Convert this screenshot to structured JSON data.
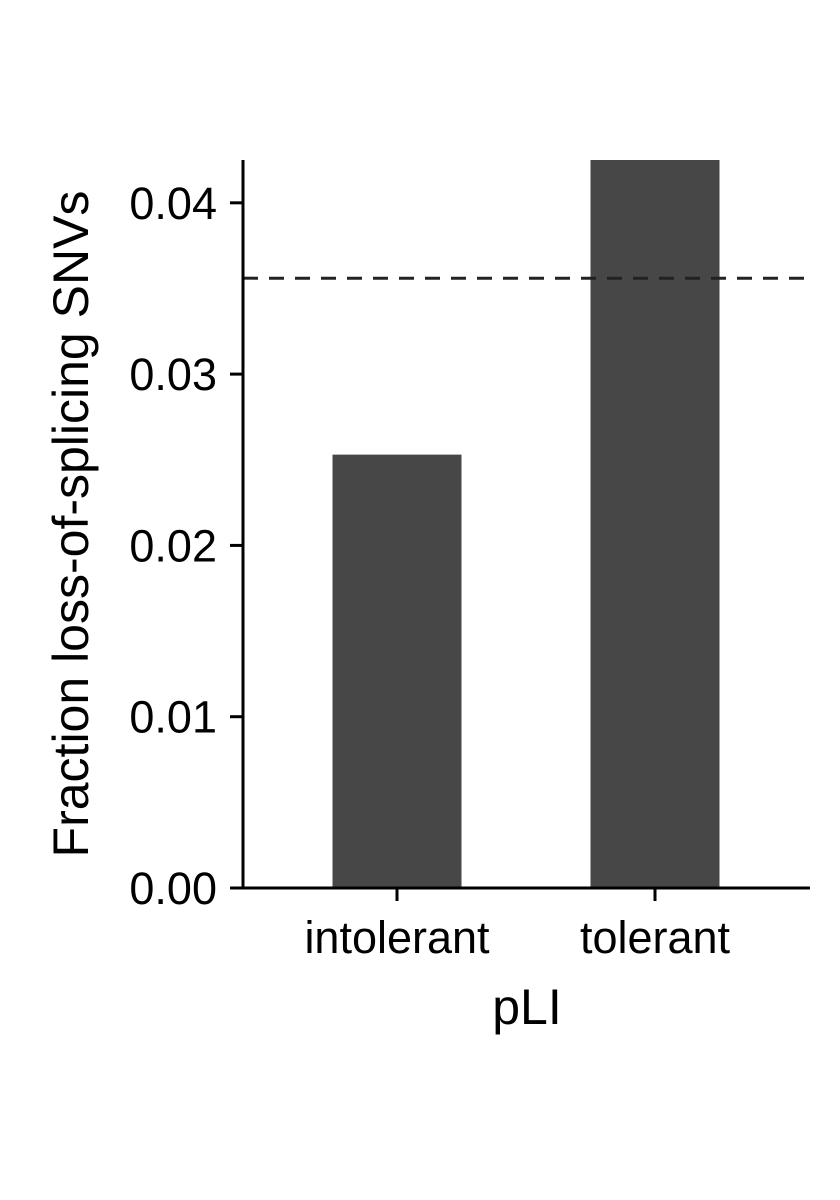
{
  "chart_data": {
    "type": "bar",
    "title": "",
    "xlabel": "pLI",
    "ylabel": "Fraction loss-of-splicing SNVs",
    "categories": [
      "intolerant",
      "tolerant"
    ],
    "values": [
      0.0253,
      0.0425
    ],
    "ylim": [
      0,
      0.0425
    ],
    "yticks": [
      0.0,
      0.01,
      0.02,
      0.03,
      0.04
    ],
    "ytick_labels": [
      "0.00",
      "0.01",
      "0.02",
      "0.03",
      "0.04"
    ],
    "reference_line": {
      "value": 0.0356,
      "style": "dashed"
    },
    "grid": false,
    "legend": "none",
    "colors": {
      "bar": "#474747",
      "axis": "#000000",
      "reference": "#222222"
    }
  }
}
